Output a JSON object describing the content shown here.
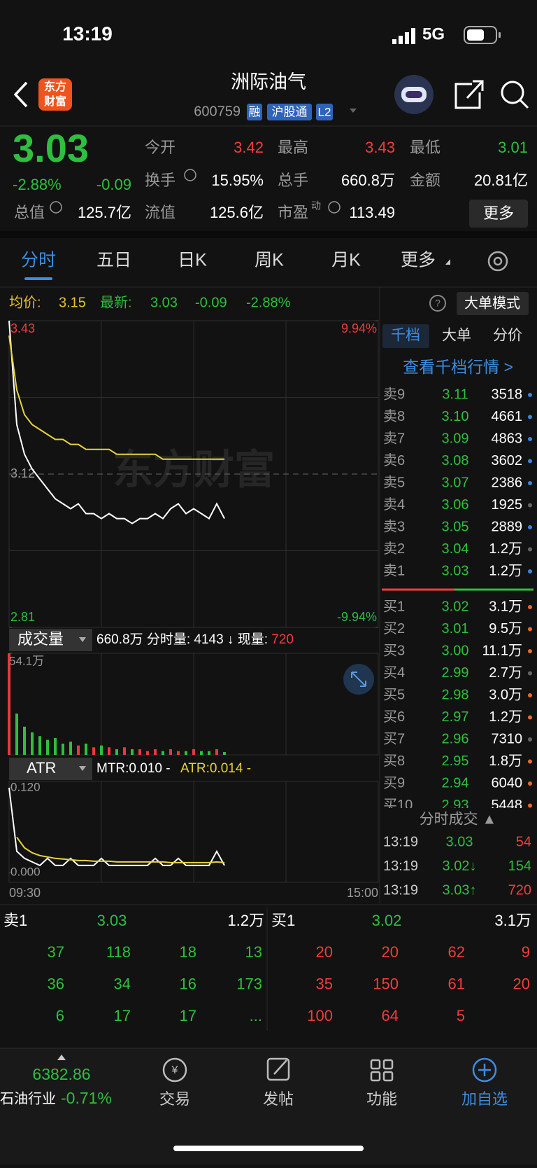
{
  "status_bar": {
    "time": "13:19",
    "network": "5G"
  },
  "header": {
    "logo": [
      "东方",
      "财富"
    ],
    "title": "洲际油气",
    "code": "600759",
    "badges": [
      "融",
      "沪股通",
      "L2"
    ]
  },
  "quote": {
    "price": "3.03",
    "change_pct": "-2.88%",
    "change": "-0.09",
    "stats": [
      {
        "label": "今开",
        "value": "3.42",
        "color": "#f23c3c"
      },
      {
        "label": "最高",
        "value": "3.43",
        "color": "#f23c3c"
      },
      {
        "label": "最低",
        "value": "3.01",
        "color": "#2fbf3f"
      },
      {
        "label": "换手",
        "value": "15.95%",
        "color": "#ffffff"
      },
      {
        "label": "总手",
        "value": "660.8万",
        "color": "#ffffff"
      },
      {
        "label": "金额",
        "value": "20.81亿",
        "color": "#ffffff"
      },
      {
        "label": "总值",
        "value": "125.7亿",
        "color": "#ffffff"
      },
      {
        "label": "流值",
        "value": "125.6亿",
        "color": "#ffffff"
      },
      {
        "label": "市盈",
        "sup": "动",
        "value": "113.49",
        "color": "#ffffff"
      }
    ],
    "more": "更多"
  },
  "tabs": [
    "分时",
    "五日",
    "日K",
    "周K",
    "月K",
    "更多"
  ],
  "summary": {
    "avg_label": "均价:",
    "avg": "3.15",
    "latest_label": "最新:",
    "latest": "3.03",
    "change": "-0.09",
    "change_pct": "-2.88%",
    "mode": "大单模式"
  },
  "chart_data": [
    {
      "type": "line",
      "watermark": "东方财富",
      "ylim": [
        2.81,
        3.43
      ],
      "yticks": [
        2.81,
        3.12,
        3.43
      ],
      "y2lim": [
        -9.94,
        9.94
      ],
      "y2ticks": [
        {
          "value": -9.94,
          "label": "-9.94%"
        },
        {
          "value": 9.94,
          "label": "9.94%"
        }
      ],
      "series": [
        {
          "color": "#ffffff",
          "values": [
            3.43,
            3.22,
            3.16,
            3.13,
            3.11,
            3.09,
            3.07,
            3.06,
            3.05,
            3.06,
            3.04,
            3.04,
            3.03,
            3.04,
            3.03,
            3.03,
            3.02,
            3.03,
            3.03,
            3.04,
            3.03,
            3.05,
            3.06,
            3.04,
            3.05,
            3.04,
            3.03,
            3.06,
            3.03
          ]
        },
        {
          "color": "#e8d43a",
          "values": [
            3.4,
            3.29,
            3.24,
            3.22,
            3.21,
            3.2,
            3.19,
            3.19,
            3.18,
            3.18,
            3.17,
            3.17,
            3.17,
            3.17,
            3.16,
            3.16,
            3.16,
            3.16,
            3.16,
            3.16,
            3.15,
            3.15,
            3.15,
            3.15,
            3.15,
            3.15,
            3.15,
            3.15,
            3.15
          ]
        }
      ]
    },
    {
      "type": "bar",
      "title": "成交量",
      "total": "660.8万",
      "tick_vol_label": "分时量:",
      "tick_vol": "4143 ↓",
      "current_label": "现量:",
      "current": "720",
      "ylim": [
        0,
        54.1
      ],
      "yticks": [
        {
          "value": 54.1,
          "label": "54.1万"
        }
      ],
      "up_color": "#e8393a",
      "down_color": "#2fbf3f",
      "values": [
        54.1,
        22,
        15,
        12,
        10,
        8,
        9,
        6,
        7,
        5,
        6,
        4,
        5,
        4,
        3,
        4,
        3,
        3,
        2,
        3,
        2,
        3,
        2,
        2,
        3,
        2,
        2,
        3,
        1.5
      ]
    },
    {
      "type": "line",
      "title": "ATR",
      "legend": [
        "MTR:0.010 -",
        "ATR:0.014 -"
      ],
      "ylim": [
        0,
        0.12
      ],
      "yticks": [
        {
          "value": 0,
          "label": "0.000"
        },
        {
          "value": 0.12,
          "label": "0.120"
        }
      ],
      "time_axis": [
        "09:30",
        "15:00"
      ],
      "series": [
        {
          "color": "#ffffff",
          "values": [
            0.12,
            0.03,
            0.02,
            0.015,
            0.01,
            0.02,
            0.01,
            0.01,
            0.02,
            0.01,
            0.01,
            0.01,
            0.02,
            0.01,
            0.01,
            0.01,
            0.01,
            0.01,
            0.01,
            0.02,
            0.01,
            0.01,
            0.02,
            0.01,
            0.01,
            0.01,
            0.01,
            0.03,
            0.01
          ]
        },
        {
          "color": "#e8d43a",
          "values": [
            null,
            0.05,
            0.035,
            0.028,
            0.024,
            0.022,
            0.02,
            0.019,
            0.018,
            0.017,
            0.017,
            0.016,
            0.016,
            0.016,
            0.015,
            0.015,
            0.015,
            0.015,
            0.015,
            0.015,
            0.015,
            0.014,
            0.014,
            0.014,
            0.014,
            0.014,
            0.014,
            0.015,
            0.014
          ]
        }
      ]
    }
  ],
  "order_book": {
    "tabs": [
      "千档",
      "大单",
      "分价"
    ],
    "link": "查看千档行情 >",
    "asks": [
      {
        "label": "卖9",
        "price": "3.11",
        "volume": "3518",
        "dot": "#3a86e0"
      },
      {
        "label": "卖8",
        "price": "3.10",
        "volume": "4661",
        "dot": "#3a86e0"
      },
      {
        "label": "卖7",
        "price": "3.09",
        "volume": "4863",
        "dot": "#3a86e0"
      },
      {
        "label": "卖6",
        "price": "3.08",
        "volume": "3602",
        "dot": "#3a86e0"
      },
      {
        "label": "卖5",
        "price": "3.07",
        "volume": "2386",
        "dot": "#3a86e0"
      },
      {
        "label": "卖4",
        "price": "3.06",
        "volume": "1925",
        "dot": "#666666"
      },
      {
        "label": "卖3",
        "price": "3.05",
        "volume": "2889",
        "dot": "#3a86e0"
      },
      {
        "label": "卖2",
        "price": "3.04",
        "volume": "1.2万",
        "dot": "#666666"
      },
      {
        "label": "卖1",
        "price": "3.03",
        "volume": "1.2万",
        "dot": "#3a86e0"
      }
    ],
    "bids": [
      {
        "label": "买1",
        "price": "3.02",
        "volume": "3.1万",
        "dot": "#f0692a"
      },
      {
        "label": "买2",
        "price": "3.01",
        "volume": "9.5万",
        "dot": "#f0692a"
      },
      {
        "label": "买3",
        "price": "3.00",
        "volume": "11.1万",
        "dot": "#f0692a"
      },
      {
        "label": "买4",
        "price": "2.99",
        "volume": "2.7万",
        "dot": "#666666"
      },
      {
        "label": "买5",
        "price": "2.98",
        "volume": "3.0万",
        "dot": "#f0692a"
      },
      {
        "label": "买6",
        "price": "2.97",
        "volume": "1.2万",
        "dot": "#f0692a"
      },
      {
        "label": "买7",
        "price": "2.96",
        "volume": "7310",
        "dot": "#666666"
      },
      {
        "label": "买8",
        "price": "2.95",
        "volume": "1.8万",
        "dot": "#f0692a"
      },
      {
        "label": "买9",
        "price": "2.94",
        "volume": "6040",
        "dot": "#f0692a"
      },
      {
        "label": "买10",
        "price": "2.93",
        "volume": "5448",
        "dot": "#f0692a"
      }
    ],
    "trades_title": "分时成交 ▲",
    "trades": [
      {
        "time": "13:19",
        "price": "3.03",
        "volume": "54",
        "color": "#f23c3c"
      },
      {
        "time": "13:19",
        "price": "3.02↓",
        "volume": "154",
        "color": "#2fbf3f"
      },
      {
        "time": "13:19",
        "price": "3.03↑",
        "volume": "720",
        "color": "#f23c3c"
      }
    ]
  },
  "queue": {
    "ask": {
      "label": "卖1",
      "price": "3.03",
      "volume": "1.2万",
      "orders": [
        "37",
        "118",
        "18",
        "13",
        "36",
        "34",
        "16",
        "173",
        "6",
        "17",
        "17",
        "..."
      ]
    },
    "bid": {
      "label": "买1",
      "price": "3.02",
      "volume": "3.1万",
      "orders": [
        "20",
        "20",
        "62",
        "9",
        "35",
        "150",
        "61",
        "20",
        "100",
        "64",
        "5"
      ]
    }
  },
  "bottom_nav": {
    "index_value": "6382.86",
    "index_name": "石油行业",
    "index_change": "-0.71%",
    "items": [
      "交易",
      "发帖",
      "功能",
      "加自选"
    ]
  }
}
